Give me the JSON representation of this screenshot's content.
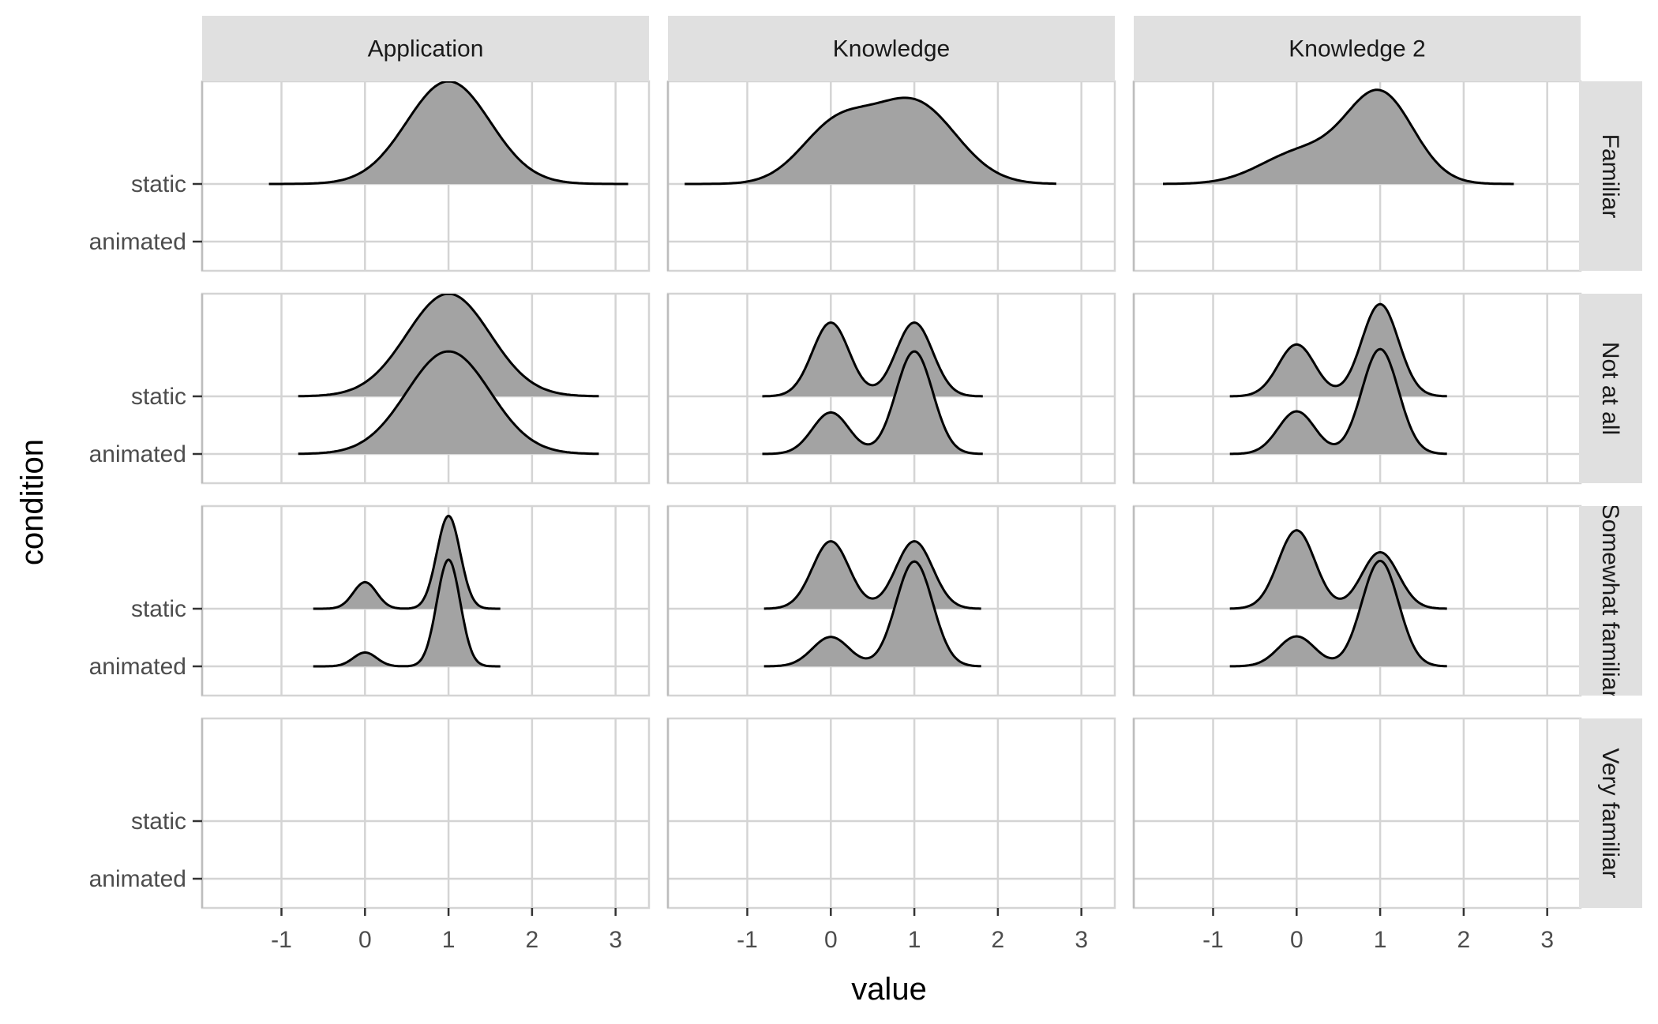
{
  "chart_data": {
    "type": "ridgeline",
    "xlabel": "value",
    "ylabel": "condition",
    "x_ticks": [
      -1,
      0,
      1,
      2,
      3
    ],
    "x_tick_labels": [
      "-1",
      "0",
      "1",
      "2",
      "3"
    ],
    "xlim": [
      -1.95,
      3.4
    ],
    "y_levels": [
      "animated",
      "static"
    ],
    "column_facets": [
      "Application",
      "Knowledge",
      "Knowledge 2"
    ],
    "row_facets": [
      "Familiar",
      "Not at all",
      "Somewhat familiar",
      "Very familiar"
    ],
    "grid": true,
    "colors": {
      "fill": "#a3a3a3",
      "line": "#000000",
      "grid": "#d4d4d4",
      "strip_background": "#e0e0e0",
      "panel_border": "#d4d4d4"
    },
    "panels": [
      {
        "row": "Familiar",
        "col": "Application",
        "ridges": [
          {
            "condition": "static",
            "peaks": [
              {
                "mu": 1.0,
                "sigma": 0.5,
                "height": 1.78
              }
            ],
            "range": [
              -1.15,
              3.15
            ]
          }
        ]
      },
      {
        "row": "Familiar",
        "col": "Knowledge",
        "ridges": [
          {
            "condition": "static",
            "peaks": [
              {
                "mu": 0.05,
                "sigma": 0.42,
                "height": 0.95
              },
              {
                "mu": 1.0,
                "sigma": 0.5,
                "height": 1.4
              }
            ],
            "range": [
              -1.75,
              2.7
            ]
          }
        ]
      },
      {
        "row": "Familiar",
        "col": "Knowledge 2",
        "ridges": [
          {
            "condition": "static",
            "peaks": [
              {
                "mu": 0.05,
                "sigma": 0.48,
                "height": 0.55
              },
              {
                "mu": 1.0,
                "sigma": 0.4,
                "height": 1.55
              }
            ],
            "range": [
              -1.6,
              2.6
            ]
          }
        ]
      },
      {
        "row": "Not at all",
        "col": "Application",
        "ridges": [
          {
            "condition": "animated",
            "peaks": [
              {
                "mu": 1.0,
                "sigma": 0.5,
                "height": 1.78
              }
            ],
            "range": [
              -0.8,
              2.8
            ]
          },
          {
            "condition": "static",
            "peaks": [
              {
                "mu": 1.0,
                "sigma": 0.5,
                "height": 1.78
              }
            ],
            "range": [
              -0.8,
              2.8
            ]
          }
        ]
      },
      {
        "row": "Not at all",
        "col": "Knowledge",
        "ridges": [
          {
            "condition": "animated",
            "peaks": [
              {
                "mu": 0.0,
                "sigma": 0.22,
                "height": 0.72
              },
              {
                "mu": 1.0,
                "sigma": 0.22,
                "height": 1.78
              }
            ],
            "range": [
              -0.82,
              1.82
            ]
          },
          {
            "condition": "static",
            "peaks": [
              {
                "mu": 0.0,
                "sigma": 0.22,
                "height": 1.28
              },
              {
                "mu": 1.0,
                "sigma": 0.22,
                "height": 1.28
              }
            ],
            "range": [
              -0.82,
              1.82
            ]
          }
        ]
      },
      {
        "row": "Not at all",
        "col": "Knowledge 2",
        "ridges": [
          {
            "condition": "animated",
            "peaks": [
              {
                "mu": 0.0,
                "sigma": 0.22,
                "height": 0.74
              },
              {
                "mu": 1.0,
                "sigma": 0.22,
                "height": 1.82
              }
            ],
            "range": [
              -0.8,
              1.8
            ]
          },
          {
            "condition": "static",
            "peaks": [
              {
                "mu": 0.0,
                "sigma": 0.22,
                "height": 0.9
              },
              {
                "mu": 1.0,
                "sigma": 0.22,
                "height": 1.6
              }
            ],
            "range": [
              -0.8,
              1.8
            ]
          }
        ]
      },
      {
        "row": "Somewhat familiar",
        "col": "Application",
        "ridges": [
          {
            "condition": "animated",
            "peaks": [
              {
                "mu": 0.0,
                "sigma": 0.14,
                "height": 0.24
              },
              {
                "mu": 1.0,
                "sigma": 0.14,
                "height": 1.85
              }
            ],
            "range": [
              -0.62,
              1.62
            ]
          },
          {
            "condition": "static",
            "peaks": [
              {
                "mu": 0.0,
                "sigma": 0.14,
                "height": 0.46
              },
              {
                "mu": 1.0,
                "sigma": 0.14,
                "height": 1.61
              }
            ],
            "range": [
              -0.62,
              1.62
            ]
          }
        ]
      },
      {
        "row": "Somewhat familiar",
        "col": "Knowledge",
        "ridges": [
          {
            "condition": "animated",
            "peaks": [
              {
                "mu": 0.0,
                "sigma": 0.22,
                "height": 0.51
              },
              {
                "mu": 1.0,
                "sigma": 0.22,
                "height": 1.82
              }
            ],
            "range": [
              -0.8,
              1.8
            ]
          },
          {
            "condition": "static",
            "peaks": [
              {
                "mu": 0.0,
                "sigma": 0.22,
                "height": 1.17
              },
              {
                "mu": 1.0,
                "sigma": 0.22,
                "height": 1.17
              }
            ],
            "range": [
              -0.8,
              1.8
            ]
          }
        ]
      },
      {
        "row": "Somewhat familiar",
        "col": "Knowledge 2",
        "ridges": [
          {
            "condition": "animated",
            "peaks": [
              {
                "mu": 0.0,
                "sigma": 0.22,
                "height": 0.52
              },
              {
                "mu": 1.0,
                "sigma": 0.22,
                "height": 1.83
              }
            ],
            "range": [
              -0.8,
              1.8
            ]
          },
          {
            "condition": "static",
            "peaks": [
              {
                "mu": 0.0,
                "sigma": 0.22,
                "height": 1.36
              },
              {
                "mu": 1.0,
                "sigma": 0.22,
                "height": 0.98
              }
            ],
            "range": [
              -0.8,
              1.8
            ]
          }
        ]
      },
      {
        "row": "Very familiar",
        "col": "Application",
        "ridges": []
      },
      {
        "row": "Very familiar",
        "col": "Knowledge",
        "ridges": []
      },
      {
        "row": "Very familiar",
        "col": "Knowledge 2",
        "ridges": []
      }
    ]
  }
}
